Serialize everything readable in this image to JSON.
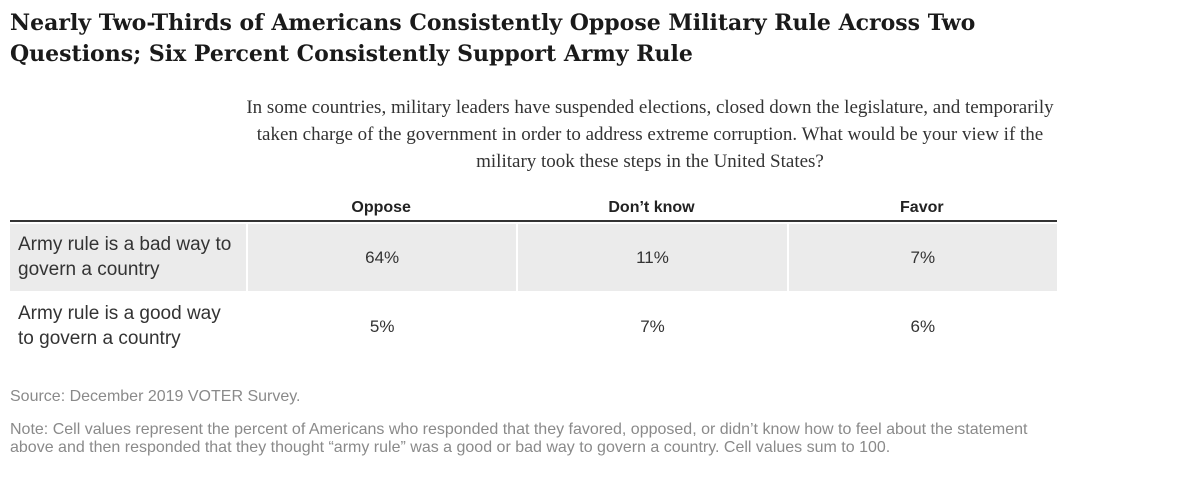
{
  "title": "Nearly Two-Thirds of Americans Consistently Oppose Military Rule Across Two Questions; Six Percent Consistently Support Army Rule",
  "question": "In some countries, military leaders have suspended elections, closed down the legislature, and temporarily taken charge of the government in order to address extreme corruption. What would be your view if the military took these steps in the United States?",
  "chart_data": {
    "type": "table",
    "columns": [
      "Oppose",
      "Don’t know",
      "Favor"
    ],
    "rows": [
      {
        "label": "Army rule is a bad way to govern a country",
        "values": [
          "64%",
          "11%",
          "7%"
        ]
      },
      {
        "label": "Army rule is a good way to govern a country",
        "values": [
          "5%",
          "7%",
          "6%"
        ]
      }
    ],
    "shading": {
      "row_1": "#ebebeb",
      "row_2": "#ffffff"
    }
  },
  "source": "Source: December 2019 VOTER Survey.",
  "note": "Note: Cell values represent the percent of Americans who responded that they favored, opposed, or didn’t know how to feel about the statement above and then responded that they thought “army rule” was a good or bad way to govern a country. Cell values sum to 100."
}
